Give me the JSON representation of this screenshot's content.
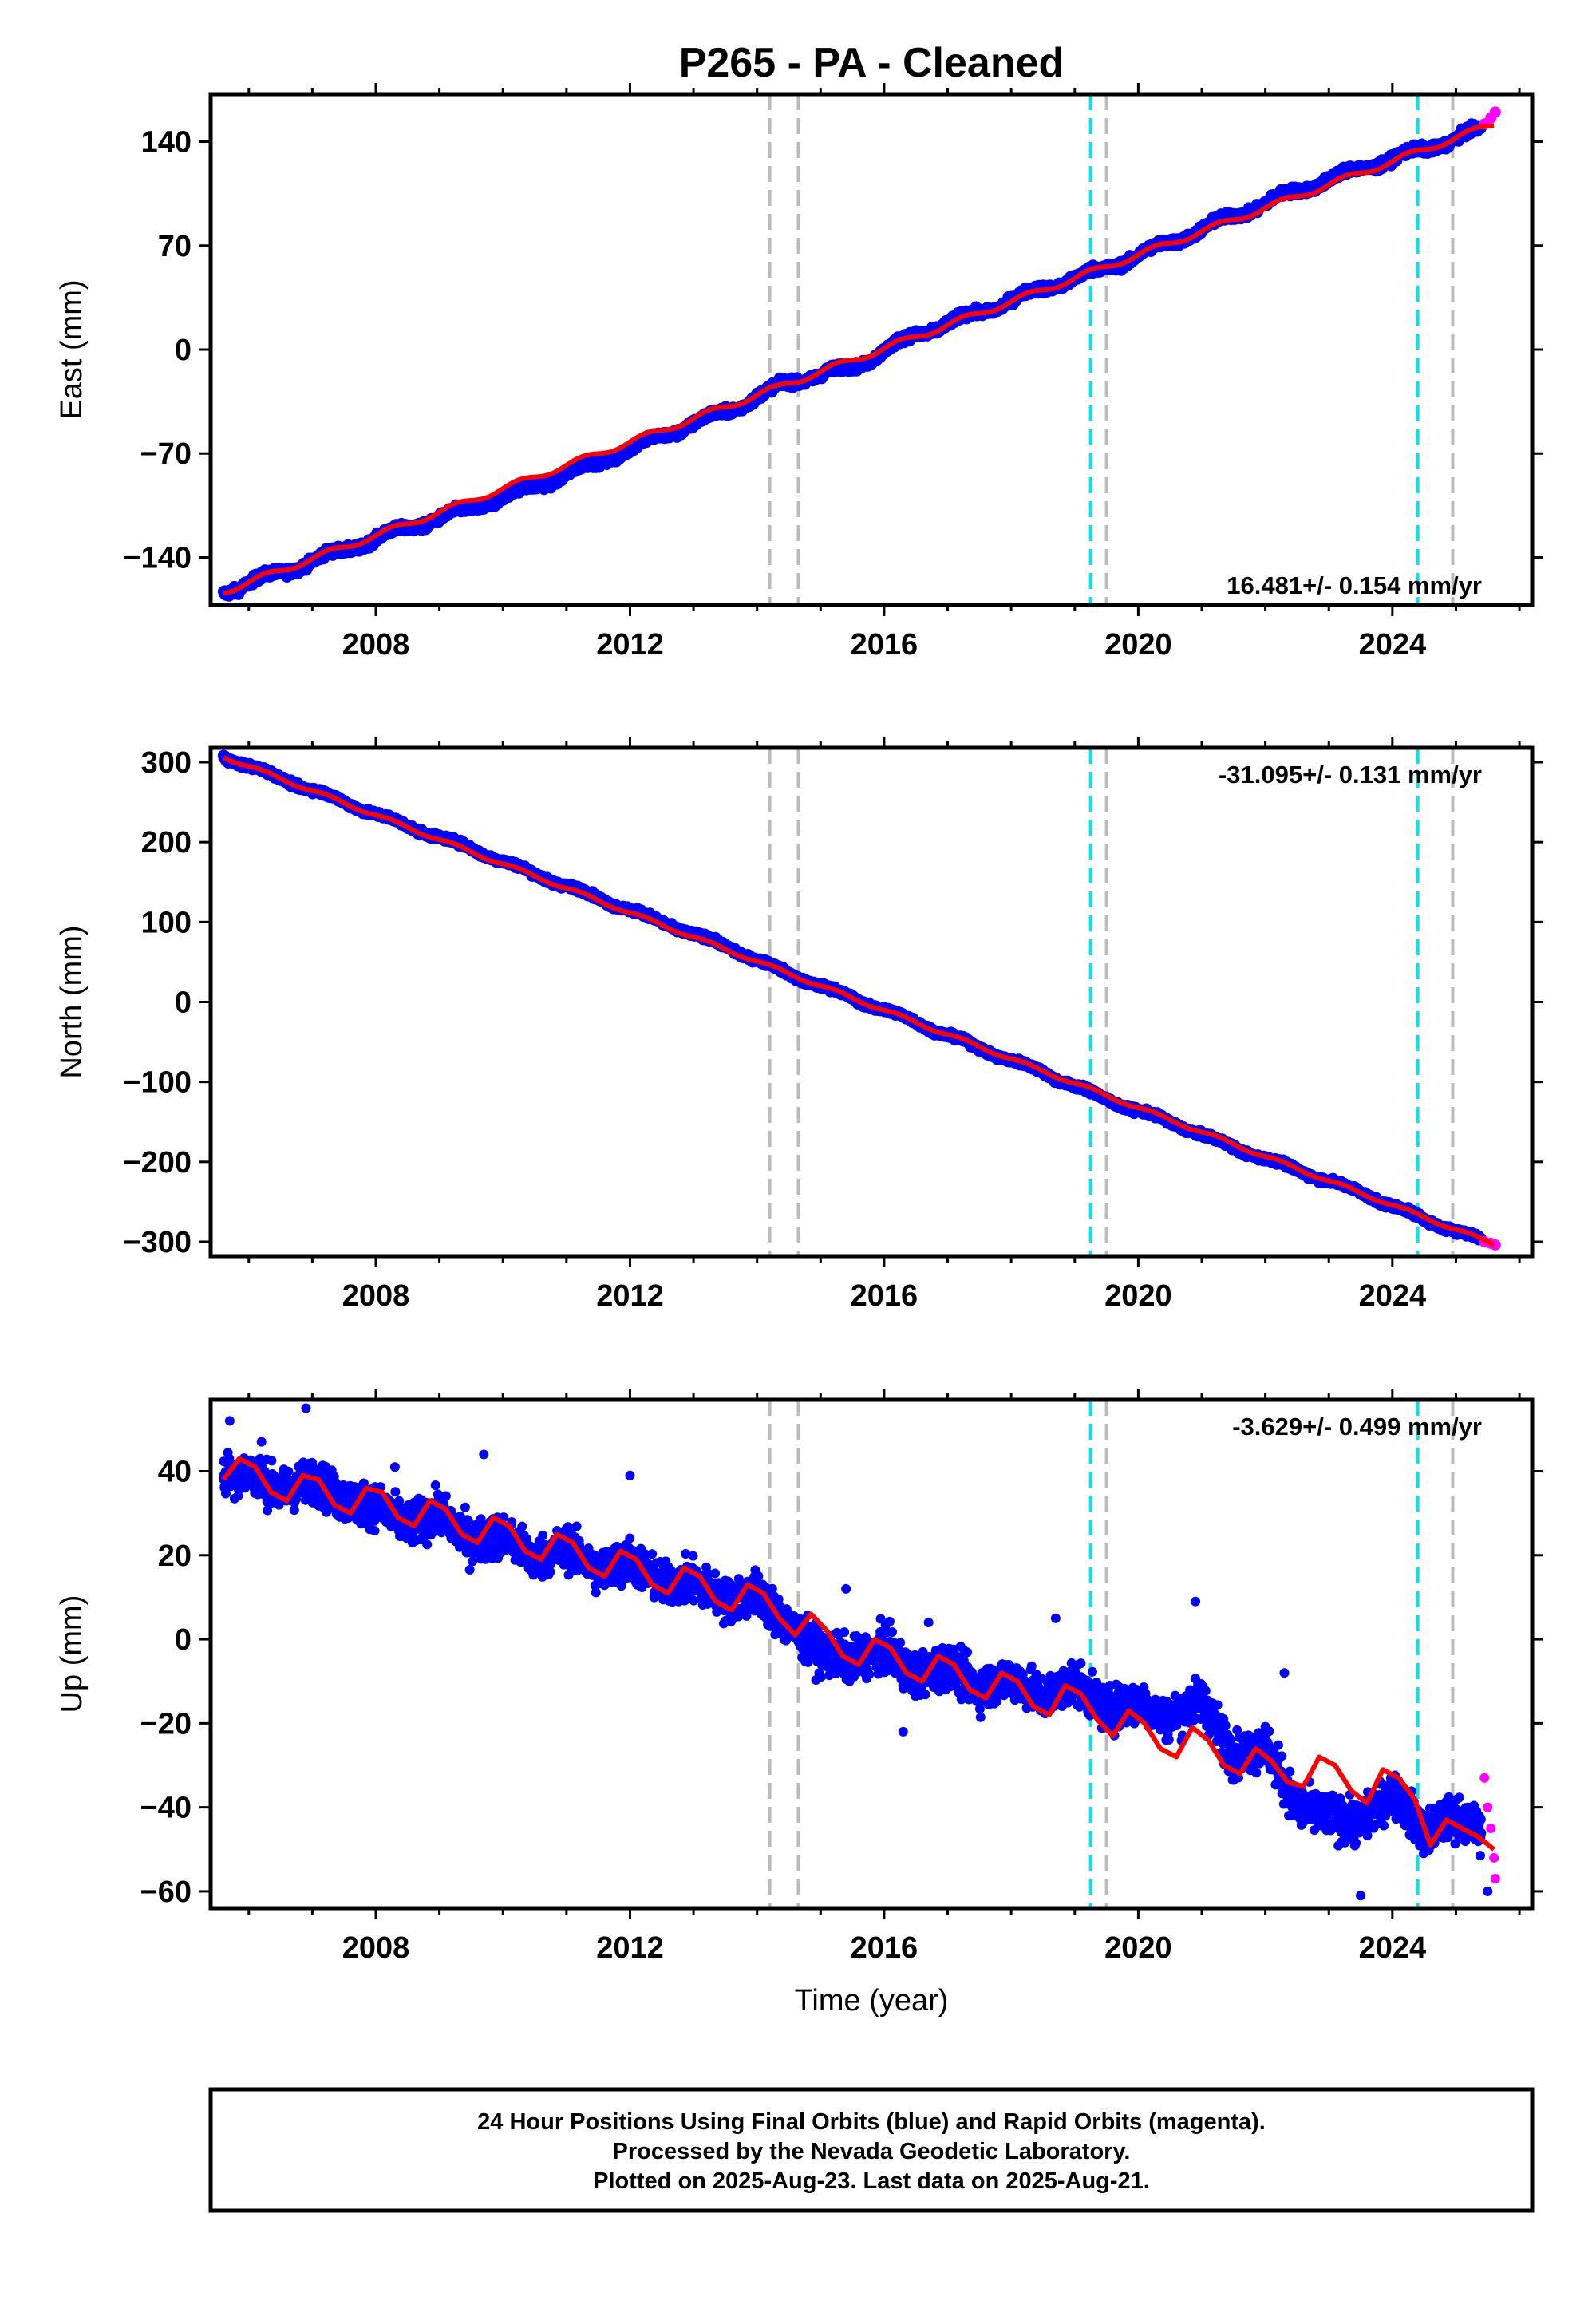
{
  "title": "P265  - PA - Cleaned",
  "colors": {
    "final_orbits": "#0000ff",
    "rapid_orbits": "#ff00ff",
    "model": "#ff0000",
    "antenna_change": "#00e5ee",
    "equipment_change": "#bbbbbb"
  },
  "footer": {
    "line1": "24 Hour Positions Using Final Orbits (blue) and Rapid Orbits (magenta).",
    "line2": "Processed by the Nevada Geodetic Laboratory.",
    "line3": "Plotted on 2025-Aug-23. Last data on 2025-Aug-21."
  },
  "chart_data": [
    {
      "type": "scatter",
      "component": "east",
      "ylabel": "East (mm)",
      "xlabel": "",
      "rate_label": "16.481+/- 0.154 mm/yr",
      "rate_position": "bottom-right",
      "xlim": [
        2005.4,
        2026.2
      ],
      "ylim": [
        -172,
        172
      ],
      "xticks": [
        "2008",
        "2012",
        "2016",
        "2020",
        "2024"
      ],
      "yticks": [
        "140",
        "70",
        "0",
        "−70",
        "−140"
      ],
      "ytick_values": [
        140,
        70,
        0,
        -70,
        -140
      ],
      "series": [
        {
          "name": "Final Orbits (blue)",
          "x": [
            2005.6,
            2006.5,
            2007.5,
            2008.5,
            2009.5,
            2010.5,
            2011.5,
            2012.5,
            2013.5,
            2014.5,
            2015.5,
            2016.5,
            2017.5,
            2018.5,
            2019.5,
            2020.5,
            2021.5,
            2022.5,
            2023.5,
            2024.5,
            2025.4
          ],
          "y": [
            -163,
            -150,
            -135,
            -120,
            -107,
            -92,
            -76,
            -58,
            -42,
            -22,
            -12,
            10,
            25,
            41,
            55,
            72,
            90,
            107,
            122,
            135,
            148
          ]
        },
        {
          "name": "Rapid Orbits (magenta)",
          "x": [
            2025.45,
            2025.55,
            2025.62
          ],
          "y": [
            152,
            156,
            160
          ]
        }
      ],
      "model": {
        "x": [
          2005.6,
          2025.6
        ],
        "y": [
          -163,
          152
        ]
      },
      "antenna_change_years": [
        2019.25,
        2024.4
      ],
      "equipment_change_years": [
        2014.2,
        2014.65,
        2019.5,
        2024.95
      ]
    },
    {
      "type": "scatter",
      "component": "north",
      "ylabel": "North (mm)",
      "xlabel": "",
      "rate_label": "-31.095+/- 0.131 mm/yr",
      "rate_position": "top-right",
      "xlim": [
        2005.4,
        2026.2
      ],
      "ylim": [
        -318,
        318
      ],
      "xticks": [
        "2008",
        "2012",
        "2016",
        "2020",
        "2024"
      ],
      "yticks": [
        "300",
        "200",
        "100",
        "0",
        "−100",
        "−200",
        "−300"
      ],
      "ytick_values": [
        300,
        200,
        100,
        0,
        -100,
        -200,
        -300
      ],
      "series": [
        {
          "name": "Final Orbits (blue)",
          "x": [
            2005.6,
            2006.5,
            2007.5,
            2008.5,
            2009.5,
            2010.5,
            2011.5,
            2012.5,
            2013.5,
            2014.5,
            2015.5,
            2016.5,
            2017.5,
            2018.5,
            2019.5,
            2020.5,
            2021.5,
            2022.5,
            2023.5,
            2024.5,
            2025.4
          ],
          "y": [
            307,
            280,
            250,
            220,
            192,
            160,
            130,
            100,
            70,
            35,
            5,
            -25,
            -58,
            -88,
            -122,
            -150,
            -182,
            -210,
            -238,
            -272,
            -298
          ]
        },
        {
          "name": "Rapid Orbits (magenta)",
          "x": [
            2025.45,
            2025.55,
            2025.62
          ],
          "y": [
            -300,
            -302,
            -304
          ]
        }
      ],
      "model": {
        "x": [
          2005.6,
          2025.6
        ],
        "y": [
          307,
          -303
        ]
      },
      "antenna_change_years": [
        2019.25,
        2024.4
      ],
      "equipment_change_years": [
        2014.2,
        2014.65,
        2019.5,
        2024.95
      ]
    },
    {
      "type": "scatter",
      "component": "up",
      "ylabel": "Up (mm)",
      "xlabel": "Time (year)",
      "rate_label": "-3.629+/- 0.499 mm/yr",
      "rate_position": "top-right",
      "xlim": [
        2005.4,
        2026.2
      ],
      "ylim": [
        -64,
        57
      ],
      "xticks": [
        "2008",
        "2012",
        "2016",
        "2020",
        "2024"
      ],
      "yticks": [
        "40",
        "20",
        "0",
        "−20",
        "−40",
        "−60"
      ],
      "ytick_values": [
        40,
        20,
        0,
        -20,
        -40,
        -60
      ],
      "series": [
        {
          "name": "Final Orbits (blue)",
          "x": [
            2005.6,
            2006.0,
            2006.5,
            2007.0,
            2007.5,
            2008.0,
            2008.5,
            2009.0,
            2009.5,
            2010.0,
            2010.5,
            2011.0,
            2011.5,
            2012.0,
            2012.5,
            2013.0,
            2013.5,
            2014.0,
            2014.5,
            2015.0,
            2015.5,
            2016.0,
            2016.5,
            2017.0,
            2017.5,
            2018.0,
            2018.5,
            2019.0,
            2019.5,
            2020.0,
            2020.5,
            2021.0,
            2021.5,
            2022.0,
            2022.5,
            2023.0,
            2023.5,
            2024.0,
            2024.5,
            2025.0,
            2025.4
          ],
          "y": [
            39,
            40,
            35,
            38,
            33,
            32,
            27,
            30,
            23,
            25,
            19,
            22,
            16,
            19,
            13,
            14,
            9,
            11,
            3,
            -3,
            -5,
            -2,
            -9,
            -6,
            -12,
            -9,
            -14,
            -10,
            -17,
            -15,
            -19,
            -14,
            -28,
            -25,
            -40,
            -42,
            -44,
            -36,
            -46,
            -42,
            -46
          ]
        },
        {
          "name": "Rapid Orbits (magenta)",
          "x": [
            2025.45,
            2025.5,
            2025.55,
            2025.6,
            2025.62
          ],
          "y": [
            -33,
            -40,
            -45,
            -52,
            -57
          ]
        }
      ],
      "model": {
        "x": [
          2005.6,
          2005.85,
          2006.1,
          2006.35,
          2006.6,
          2006.85,
          2007.1,
          2007.35,
          2007.6,
          2007.85,
          2008.1,
          2008.35,
          2008.6,
          2008.85,
          2009.1,
          2009.35,
          2009.6,
          2009.85,
          2010.1,
          2010.35,
          2010.6,
          2010.85,
          2011.1,
          2011.35,
          2011.6,
          2011.85,
          2012.1,
          2012.35,
          2012.6,
          2012.85,
          2013.1,
          2013.35,
          2013.6,
          2013.85,
          2014.1,
          2014.35,
          2014.6,
          2014.85,
          2015.1,
          2015.35,
          2015.6,
          2015.85,
          2016.1,
          2016.35,
          2016.6,
          2016.85,
          2017.1,
          2017.35,
          2017.6,
          2017.85,
          2018.1,
          2018.35,
          2018.6,
          2018.85,
          2019.1,
          2019.35,
          2019.6,
          2019.85,
          2020.1,
          2020.35,
          2020.6,
          2020.85,
          2021.1,
          2021.35,
          2021.6,
          2021.85,
          2022.1,
          2022.35,
          2022.6,
          2022.85,
          2023.1,
          2023.35,
          2023.6,
          2023.85,
          2024.1,
          2024.35,
          2024.6,
          2024.85,
          2025.1,
          2025.35,
          2025.6
        ],
        "y": [
          38,
          43,
          41,
          35,
          33,
          39,
          38,
          32,
          30,
          36,
          35,
          29,
          27,
          33,
          31,
          25,
          23,
          29,
          27,
          21,
          19,
          25,
          23,
          17,
          15,
          21,
          19,
          13,
          11,
          17,
          15,
          9,
          7,
          13,
          11,
          5,
          1,
          6,
          2,
          -4,
          -6,
          0,
          -2,
          -8,
          -10,
          -4,
          -6,
          -12,
          -14,
          -8,
          -10,
          -16,
          -18,
          -11,
          -13,
          -19,
          -23,
          -17,
          -20,
          -26,
          -28,
          -21,
          -24,
          -30,
          -32,
          -26,
          -29,
          -34,
          -35,
          -28,
          -30,
          -36,
          -39,
          -31,
          -33,
          -38,
          -49,
          -43,
          -45,
          -47,
          -50
        ]
      },
      "antenna_change_years": [
        2019.25,
        2024.4
      ],
      "equipment_change_years": [
        2014.2,
        2014.65,
        2019.5,
        2024.95
      ]
    }
  ]
}
